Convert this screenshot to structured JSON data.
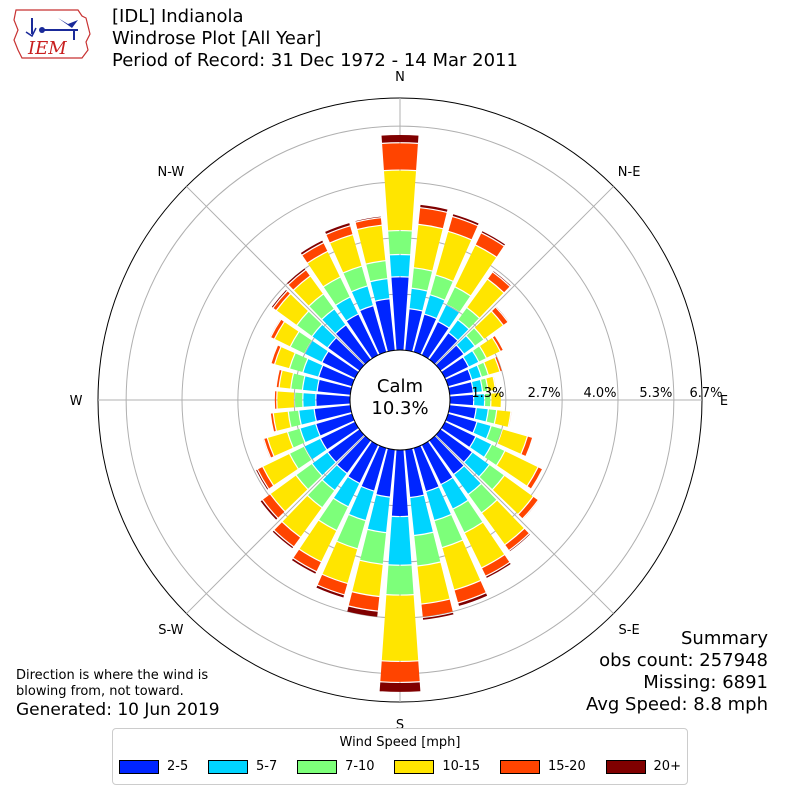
{
  "header": {
    "line1": "[IDL] Indianola",
    "line2": "Windrose Plot [All Year]",
    "line3": "Period of Record: 31 Dec 1972 - 14 Mar 2011"
  },
  "logo_text": "IEM",
  "footer": {
    "note_line1": "Direction is where the wind is",
    "note_line2": "blowing from, not toward.",
    "generated": "Generated: 10 Jun 2019"
  },
  "summary": {
    "title": "Summary",
    "obs_count": "obs count: 257948",
    "missing": "Missing: 6891",
    "avg_speed": "Avg Speed: 8.8 mph"
  },
  "calm": {
    "label": "Calm",
    "value": "10.3%"
  },
  "legend": {
    "title": "Wind Speed [mph]",
    "bins": [
      {
        "label": "2-5",
        "color": "#0025ff"
      },
      {
        "label": "5-7",
        "color": "#00d4ff"
      },
      {
        "label": "7-10",
        "color": "#7dff7a"
      },
      {
        "label": "10-15",
        "color": "#ffe500"
      },
      {
        "label": "15-20",
        "color": "#ff4400"
      },
      {
        "label": "20+",
        "color": "#800000"
      }
    ]
  },
  "chart_data": {
    "type": "windrose",
    "direction_labels": [
      "N",
      "N-E",
      "E",
      "S-E",
      "S",
      "S-W",
      "W",
      "N-W"
    ],
    "radial_ticks": [
      "1.3%",
      "2.7%",
      "4.0%",
      "5.3%",
      "6.7%"
    ],
    "radial_tick_values": [
      1.33,
      2.67,
      4.0,
      5.33,
      6.67
    ],
    "rmax": 6.0,
    "calm_percent": 10.3,
    "speed_bins": [
      "2-5",
      "5-7",
      "7-10",
      "10-15",
      "15-20",
      "20+"
    ],
    "directions_deg": [
      0,
      10,
      20,
      30,
      40,
      50,
      60,
      70,
      80,
      90,
      100,
      110,
      120,
      130,
      140,
      150,
      160,
      170,
      180,
      190,
      200,
      210,
      220,
      230,
      240,
      250,
      260,
      270,
      280,
      290,
      300,
      310,
      320,
      330,
      340,
      350
    ],
    "cumulative": [
      [
        1.73,
        2.26,
        2.83,
        4.27,
        4.92,
        5.12
      ],
      [
        0.98,
        1.47,
        1.96,
        3.0,
        3.4,
        3.48
      ],
      [
        0.92,
        1.4,
        1.89,
        2.97,
        3.34,
        3.41
      ],
      [
        0.87,
        1.32,
        1.79,
        2.9,
        3.22,
        3.28
      ],
      [
        0.77,
        1.15,
        1.51,
        2.35,
        2.56,
        2.6
      ],
      [
        0.67,
        0.99,
        1.26,
        1.83,
        1.97,
        2.0
      ],
      [
        0.61,
        0.88,
        1.08,
        1.45,
        1.53,
        1.55
      ],
      [
        0.57,
        0.81,
        0.98,
        1.27,
        1.33,
        1.35
      ],
      [
        0.55,
        0.77,
        0.9,
        1.08,
        1.11,
        1.12
      ],
      [
        0.55,
        0.81,
        0.96,
        1.21,
        1.23,
        1.24
      ],
      [
        0.62,
        0.91,
        1.11,
        1.45,
        1.48,
        1.49
      ],
      [
        0.7,
        1.05,
        1.33,
        1.95,
        2.08,
        2.1
      ],
      [
        0.8,
        1.22,
        1.57,
        2.45,
        2.57,
        2.59
      ],
      [
        0.92,
        1.42,
        1.86,
        2.71,
        2.86,
        2.89
      ],
      [
        0.98,
        1.57,
        2.11,
        3.05,
        3.22,
        3.26
      ],
      [
        1.03,
        1.68,
        2.31,
        3.24,
        3.46,
        3.52
      ],
      [
        1.06,
        1.78,
        2.45,
        3.5,
        3.82,
        3.91
      ],
      [
        1.13,
        2.04,
        2.77,
        3.68,
        4.0,
        4.07
      ],
      [
        1.57,
        2.73,
        3.44,
        5.02,
        5.52,
        5.76
      ],
      [
        1.12,
        1.97,
        2.73,
        3.5,
        3.85,
        4.0
      ],
      [
        1.05,
        1.78,
        2.48,
        3.34,
        3.62,
        3.7
      ],
      [
        1.0,
        1.62,
        2.25,
        3.08,
        3.34,
        3.41
      ],
      [
        0.95,
        1.45,
        1.96,
        2.83,
        3.11,
        3.17
      ],
      [
        0.92,
        1.38,
        1.85,
        2.61,
        2.84,
        2.91
      ],
      [
        0.9,
        1.33,
        1.72,
        2.43,
        2.57,
        2.62
      ],
      [
        0.88,
        1.27,
        1.58,
        2.08,
        2.17,
        2.2
      ],
      [
        0.85,
        1.22,
        1.47,
        1.83,
        1.9,
        1.92
      ],
      [
        0.8,
        1.11,
        1.31,
        1.73,
        1.79,
        1.81
      ],
      [
        0.78,
        1.13,
        1.41,
        1.69,
        1.76,
        1.78
      ],
      [
        0.81,
        1.2,
        1.53,
        1.9,
        1.99,
        2.01
      ],
      [
        0.86,
        1.32,
        1.7,
        2.12,
        2.22,
        2.25
      ],
      [
        0.92,
        1.38,
        1.83,
        2.43,
        2.53,
        2.58
      ],
      [
        1.0,
        1.47,
        1.91,
        2.44,
        2.62,
        2.68
      ],
      [
        1.07,
        1.52,
        2.05,
        2.73,
        2.96,
        3.03
      ],
      [
        1.13,
        1.62,
        2.11,
        2.89,
        3.11,
        3.19
      ],
      [
        1.22,
        1.7,
        2.13,
        2.98,
        3.16,
        3.2
      ]
    ]
  }
}
